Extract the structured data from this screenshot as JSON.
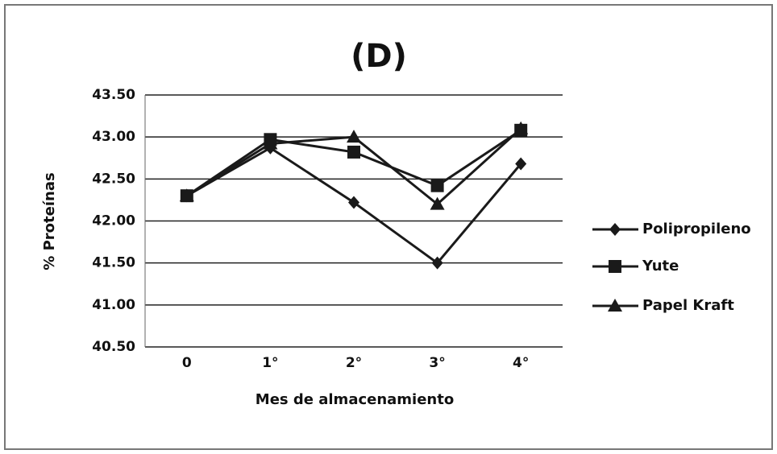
{
  "chart_data": {
    "type": "line",
    "title": "(D)",
    "x_label": "Mes de almacenamiento",
    "y_label": "% Proteínas",
    "categories": [
      "0",
      "1°",
      "2°",
      "3°",
      "4°"
    ],
    "series": [
      {
        "name": "Polipropileno",
        "color": "#1a1a1a",
        "marker": "diamond",
        "values": [
          42.3,
          42.87,
          42.22,
          41.5,
          42.68
        ]
      },
      {
        "name": "Yute",
        "color": "#1a1a1a",
        "marker": "square",
        "values": [
          42.3,
          42.97,
          42.82,
          42.42,
          43.08
        ]
      },
      {
        "name": "Papel Kraft",
        "color": "#1a1a1a",
        "marker": "triangle",
        "values": [
          42.3,
          42.92,
          43.0,
          42.2,
          43.1
        ]
      }
    ],
    "ylim": [
      40.5,
      43.5
    ],
    "yticks": [
      {
        "value": 40.5,
        "label": "40.50"
      },
      {
        "value": 41,
        "label": "41.00"
      },
      {
        "value": 41.5,
        "label": "41.50"
      },
      {
        "value": 42,
        "label": "42.00"
      },
      {
        "value": 42.5,
        "label": "42.50"
      },
      {
        "value": 43,
        "label": "43.00"
      },
      {
        "value": 43.5,
        "label": "43.50"
      }
    ],
    "grid": true,
    "legend": "right"
  }
}
